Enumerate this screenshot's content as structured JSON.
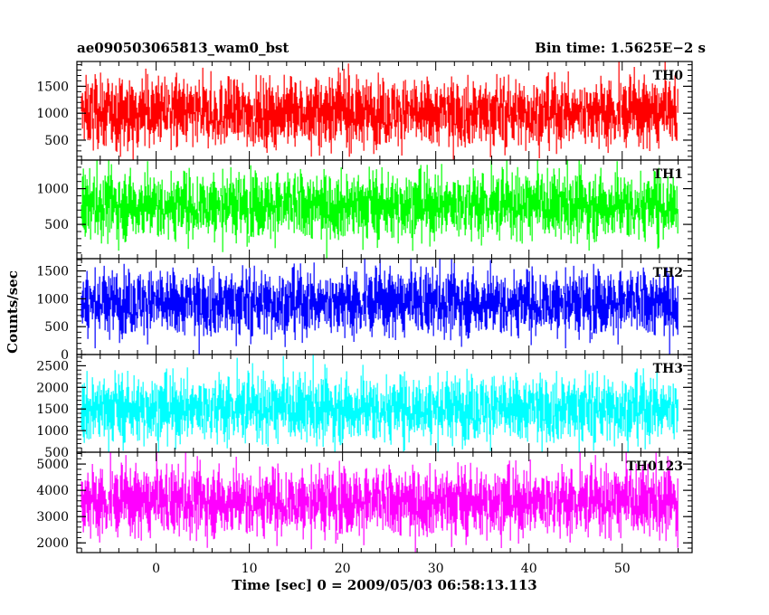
{
  "header": {
    "title": "ae090503065813_wam0_bst",
    "bin_time": "Bin time: 1.5625E−2 s"
  },
  "axes": {
    "xlabel": "Time [sec] 0 = 2009/05/03 06:58:13.113",
    "ylabel": "Counts/sec",
    "xlim": [
      -8.5,
      57.5
    ],
    "xticks": [
      0,
      10,
      20,
      30,
      40,
      50
    ],
    "x_minor_step": 2,
    "data_x_range": [
      -8,
      56
    ]
  },
  "chart_data": {
    "type": "line",
    "x_shared": true,
    "panels": [
      {
        "name": "TH0",
        "color": "#ff0000",
        "ylim": [
          130,
          1960
        ],
        "yticks": [
          500,
          1000,
          1500
        ],
        "y_minor_step": 100,
        "level": 1000,
        "series": [
          {
            "x": [
              -8,
              0,
              10,
              20,
              30,
              40,
              50,
              56
            ],
            "y": [
              1000,
              950,
              980,
              1050,
              1010,
              990,
              1020,
              1000
            ]
          }
        ]
      },
      {
        "name": "TH1",
        "color": "#00ff00",
        "ylim": [
          20,
          1400
        ],
        "yticks": [
          500,
          1000
        ],
        "y_minor_step": 100,
        "level": 760,
        "series": [
          {
            "x": [
              -8,
              0,
              10,
              20,
              30,
              40,
              50,
              56
            ],
            "y": [
              760,
              740,
              770,
              780,
              750,
              760,
              770,
              760
            ]
          }
        ]
      },
      {
        "name": "TH2",
        "color": "#0000ff",
        "ylim": [
          0,
          1720
        ],
        "yticks": [
          0,
          500,
          1000,
          1500
        ],
        "y_minor_step": 100,
        "level": 920,
        "series": [
          {
            "x": [
              -8,
              0,
              10,
              20,
              30,
              40,
              50,
              56
            ],
            "y": [
              920,
              900,
              940,
              930,
              910,
              920,
              930,
              920
            ]
          }
        ]
      },
      {
        "name": "TH3",
        "color": "#00ffff",
        "ylim": [
          500,
          2760
        ],
        "yticks": [
          500,
          1000,
          1500,
          2000,
          2500
        ],
        "y_minor_step": 100,
        "level": 1500,
        "series": [
          {
            "x": [
              -8,
              0,
              10,
              20,
              30,
              40,
              50,
              56
            ],
            "y": [
              1500,
              1480,
              1520,
              1530,
              1500,
              1510,
              1490,
              1500
            ]
          }
        ]
      },
      {
        "name": "TH0123",
        "color": "#ff00ff",
        "ylim": [
          1630,
          5450
        ],
        "yticks": [
          2000,
          3000,
          4000,
          5000
        ],
        "y_minor_step": 200,
        "level": 3550,
        "series": [
          {
            "x": [
              -8,
              0,
              10,
              20,
              30,
              40,
              50,
              56
            ],
            "y": [
              3550,
              3500,
              3580,
              3600,
              3540,
              3560,
              3570,
              3550
            ]
          }
        ]
      }
    ]
  }
}
